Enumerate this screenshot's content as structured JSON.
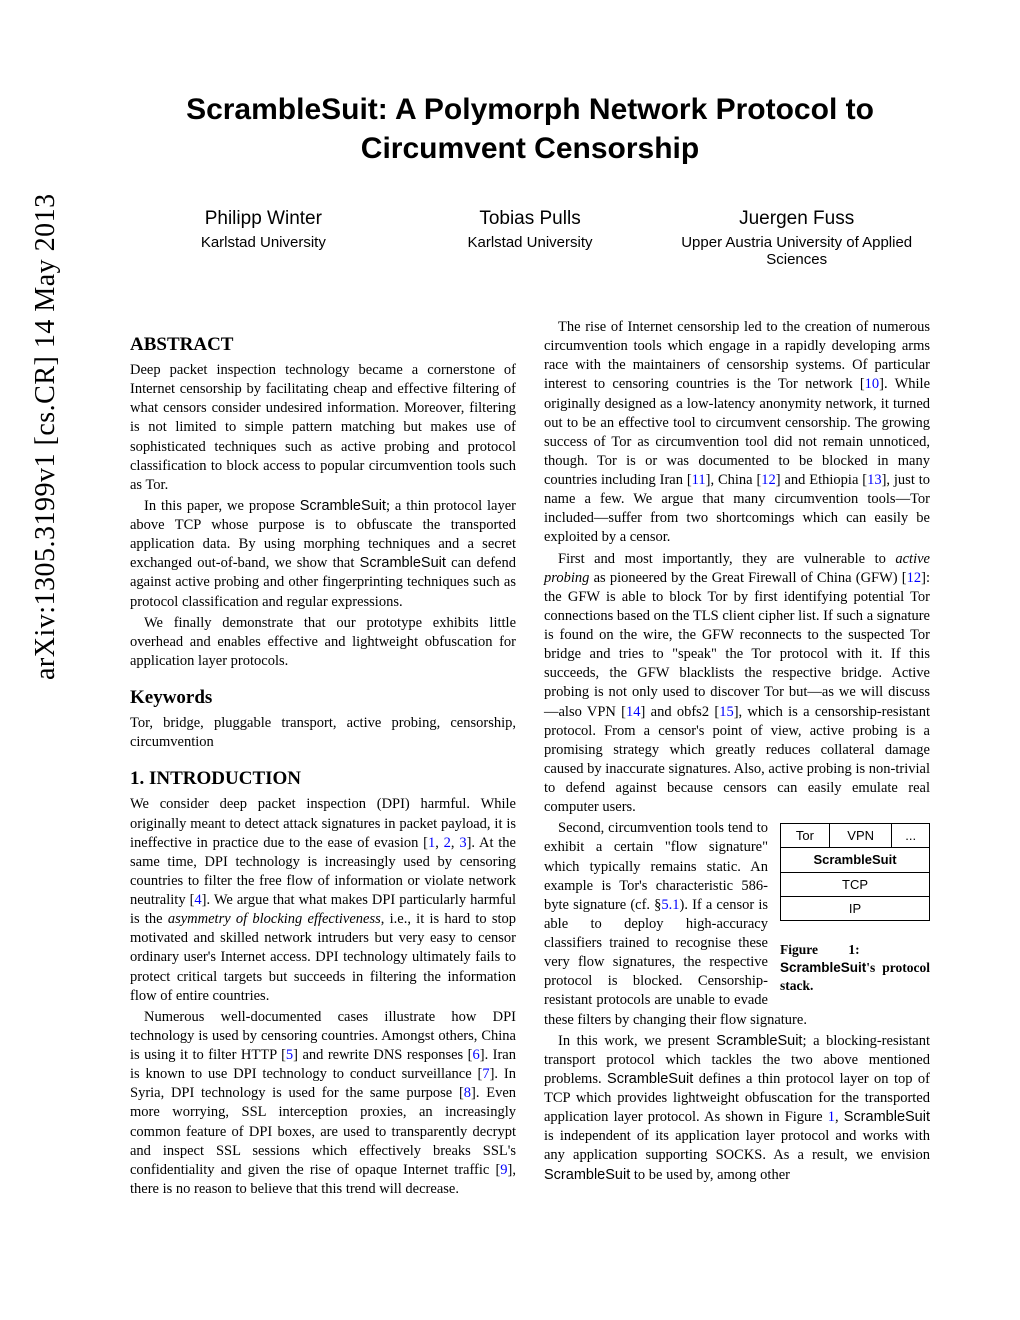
{
  "arxiv": "arXiv:1305.3199v1  [cs.CR]  14 May 2013",
  "title": "ScrambleSuit: A Polymorph Network Protocol to Circumvent Censorship",
  "authors": [
    {
      "name": "Philipp Winter",
      "affil": "Karlstad University"
    },
    {
      "name": "Tobias Pulls",
      "affil": "Karlstad University"
    },
    {
      "name": "Juergen Fuss",
      "affil": "Upper Austria University of Applied Sciences"
    }
  ],
  "headers": {
    "abstract": "ABSTRACT",
    "keywords": "Keywords",
    "intro": "1.   INTRODUCTION"
  },
  "abstract": {
    "p1": "Deep packet inspection technology became a cornerstone of Internet censorship by facilitating cheap and effective filtering of what censors consider undesired information. Moreover, filtering is not limited to simple pattern matching but makes use of sophisticated techniques such as active probing and protocol classification to block access to popular circumvention tools such as Tor.",
    "p2a": "In this paper, we propose ",
    "p2b": "ScrambleSuit",
    "p2c": "; a thin protocol layer above TCP whose purpose is to obfuscate the transported application data. By using morphing techniques and a secret exchanged out-of-band, we show that ",
    "p2d": "ScrambleSuit",
    "p2e": " can defend against active probing and other fingerprinting techniques such as protocol classification and regular expressions.",
    "p3": "We finally demonstrate that our prototype exhibits little overhead and enables effective and lightweight obfuscation for application layer protocols."
  },
  "keywords": "Tor, bridge, pluggable transport, active probing, censorship, circumvention",
  "intro": {
    "p1a": "We consider deep packet inspection (DPI) harmful. While originally meant to detect attack signatures in packet payload, it is ineffective in practice due to the ease of evasion [",
    "p1b": ", ",
    "p1c": ", ",
    "p1d": "]. At the same time, DPI technology is increasingly used by censoring countries to filter the free flow of information or violate network neutrality [",
    "p1e": "]. We argue that what makes DPI particularly harmful is the ",
    "p1f": "asymmetry of blocking effectiveness",
    "p1g": ", i.e., it is hard to stop motivated and skilled network intruders but very easy to censor ordinary user's Internet access. DPI technology ultimately fails to protect critical targets but succeeds in filtering the information flow of entire countries.",
    "p2a": "Numerous well-documented cases illustrate how DPI technology is used by censoring countries. Amongst others, China is using it to filter HTTP [",
    "p2b": "] and rewrite DNS responses [",
    "p2c": "]. Iran is known to use DPI technology to conduct surveillance [",
    "p2d": "]. In Syria, DPI technology is used for the same purpose [",
    "p2e": "]. Even more worrying, SSL interception proxies, an increasingly common feature of DPI boxes, are used to transparently decrypt and inspect SSL sessions which effectively breaks SSL's confidentiality and given the rise of opaque Internet traffic [",
    "p2f": "], there is no reason to believe that this trend will decrease."
  },
  "refs": {
    "r1": "1",
    "r2": "2",
    "r3": "3",
    "r4": "4",
    "r5": "5",
    "r6": "6",
    "r7": "7",
    "r8": "8",
    "r9": "9",
    "r10": "10",
    "r11": "11",
    "r12": "12",
    "r13": "13",
    "r14": "14",
    "r15": "15",
    "s51": "5.1",
    "f1": "1"
  },
  "col2": {
    "p1a": "The rise of Internet censorship led to the creation of numerous circumvention tools which engage in a rapidly developing arms race with the maintainers of censorship systems. Of particular interest to censoring countries is the Tor network [",
    "p1b": "]. While originally designed as a low-latency anonymity network, it turned out to be an effective tool to circumvent censorship. The growing success of Tor as circumvention tool did not remain unnoticed, though. Tor is or was documented to be blocked in many countries including Iran [",
    "p1c": "], China [",
    "p1d": "] and Ethiopia [",
    "p1e": "], just to name a few. We argue that many circumvention tools—Tor included—suffer from two shortcomings which can easily be exploited by a censor.",
    "p2a": "First and most importantly, they are vulnerable to ",
    "p2b": "active probing",
    "p2c": " as pioneered by the Great Firewall of China (GFW) [",
    "p2d": "]: the GFW is able to block Tor by first identifying potential Tor connections based on the TLS client cipher list. If such a signature is found on the wire, the GFW reconnects to the suspected Tor bridge and tries to \"speak\" the Tor protocol with it. If this succeeds, the GFW blacklists the respective bridge. Active probing is not only used to discover Tor but—as we will discuss—also VPN [",
    "p2e": "] and obfs2 [",
    "p2f": "], which is a censorship-resistant protocol. From a censor's point of view, active probing is a promising strategy which greatly reduces collateral damage caused by inaccurate signatures. Also, active probing is non-trivial to defend against because censors can easily emulate real computer users.",
    "p3a": "Second, circumvention tools tend to exhibit a certain \"flow signature\" which typically remains static. An example is Tor's characteristic 586-byte signature (cf. §",
    "p3b": "). If a censor is able to deploy high-accuracy classifiers trained to recognise these very flow signatures, the respective protocol is blocked. Censorship-resistant protocols are unable to evade these filters by changing their flow signature.",
    "p4a": "In this work, we present ",
    "p4b": "ScrambleSuit",
    "p4c": "; a blocking-resistant transport protocol which tackles the two above mentioned problems. ",
    "p4d": "ScrambleSuit",
    "p4e": " defines a thin protocol layer on top of TCP which provides lightweight obfuscation for the transported application layer protocol. As shown in Figure ",
    "p4f": ", ",
    "p4g": "ScrambleSuit",
    "p4h": " is independent of its application layer protocol and works with any application supporting SOCKS. As a result, we envision ",
    "p4i": "ScrambleSuit",
    "p4j": " to be used by, among other"
  },
  "stack": {
    "r1c1": "Tor",
    "r1c2": "VPN",
    "r1c3": "...",
    "r2": "ScrambleSuit",
    "r3": "TCP",
    "r4": "IP"
  },
  "figcap": {
    "a": "Figure",
    "b": "1:",
    "c": "ScrambleSuit",
    "d": "'s protocol stack."
  }
}
